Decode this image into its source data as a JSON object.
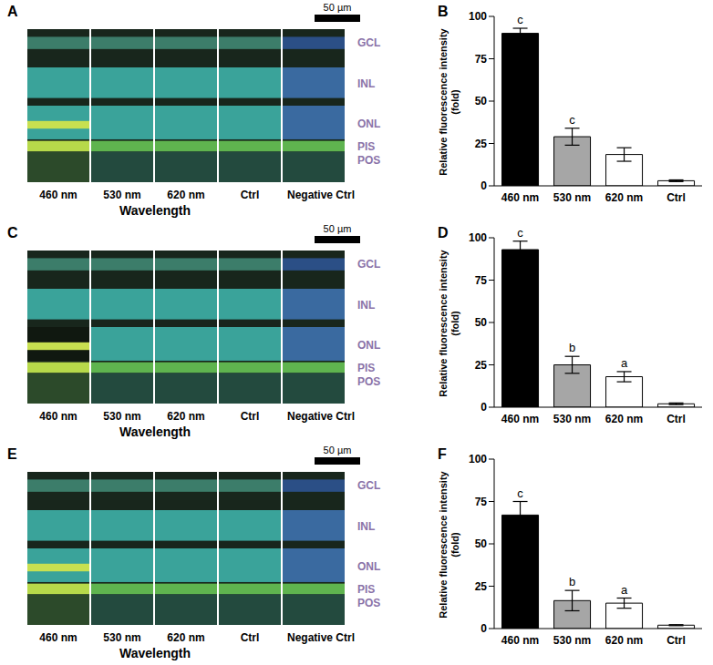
{
  "image_panels": [
    {
      "panel": "A",
      "scale_bar": "50 µm",
      "columns": [
        "460 nm",
        "530 nm",
        "620 nm",
        "Ctrl",
        "Negative Ctrl"
      ],
      "x_label": "Wavelength",
      "layers": [
        "GCL",
        "INL",
        "ONL",
        "PIS",
        "POS"
      ]
    },
    {
      "panel": "C",
      "scale_bar": "50 µm",
      "columns": [
        "460 nm",
        "530 nm",
        "620 nm",
        "Ctrl",
        "Negative Ctrl"
      ],
      "x_label": "Wavelength",
      "layers": [
        "GCL",
        "INL",
        "ONL",
        "PIS",
        "POS"
      ]
    },
    {
      "panel": "E",
      "scale_bar": "50 µm",
      "columns": [
        "460 nm",
        "530 nm",
        "620 nm",
        "Ctrl",
        "Negative Ctrl"
      ],
      "x_label": "Wavelength",
      "layers": [
        "GCL",
        "INL",
        "ONL",
        "PIS",
        "POS"
      ]
    }
  ],
  "chart_data": [
    {
      "type": "bar",
      "panel": "B",
      "y_label": "Relative fluorescence intensity (fold)",
      "categories": [
        "460 nm",
        "530 nm",
        "620 nm",
        "Ctrl"
      ],
      "values": [
        90,
        29,
        18.5,
        3
      ],
      "errors": [
        3,
        5,
        4,
        0.5
      ],
      "significance": [
        "c",
        "c",
        null,
        null
      ],
      "colors": [
        "#000000",
        "#a6a6a6",
        "#ffffff",
        "#ffffff"
      ],
      "ylim": [
        0,
        100
      ],
      "yticks": [
        0,
        25,
        50,
        75,
        100
      ]
    },
    {
      "type": "bar",
      "panel": "D",
      "y_label": "Relative fluorescence intensity (fold)",
      "categories": [
        "460 nm",
        "530 nm",
        "620 nm",
        "Ctrl"
      ],
      "values": [
        93,
        25,
        18,
        2
      ],
      "errors": [
        5,
        5,
        3,
        0.5
      ],
      "significance": [
        "c",
        "b",
        "a",
        null
      ],
      "colors": [
        "#000000",
        "#a6a6a6",
        "#ffffff",
        "#ffffff"
      ],
      "ylim": [
        0,
        100
      ],
      "yticks": [
        0,
        25,
        50,
        75,
        100
      ]
    },
    {
      "type": "bar",
      "panel": "F",
      "y_label": "Relative fluorescence intensity (fold)",
      "categories": [
        "460 nm",
        "530 nm",
        "620 nm",
        "Ctrl"
      ],
      "values": [
        67,
        16.5,
        15,
        2
      ],
      "errors": [
        8,
        6,
        3,
        0.3
      ],
      "significance": [
        "c",
        "b",
        "a",
        null
      ],
      "colors": [
        "#000000",
        "#a6a6a6",
        "#ffffff",
        "#ffffff"
      ],
      "ylim": [
        0,
        100
      ],
      "yticks": [
        0,
        25,
        50,
        75,
        100
      ]
    }
  ]
}
